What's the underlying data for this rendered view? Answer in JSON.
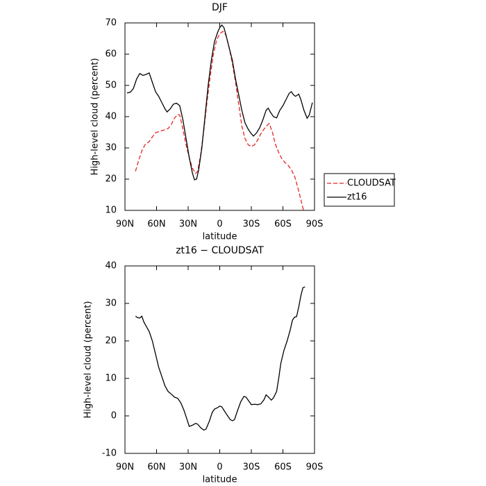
{
  "chart_data": [
    {
      "type": "line",
      "title": "DJF",
      "xlabel": "latitude",
      "ylabel": "High-level cloud (percent)",
      "xlim": [
        90,
        -90
      ],
      "ylim": [
        10,
        70
      ],
      "xticks": [
        {
          "value": 90,
          "label": "90N"
        },
        {
          "value": 60,
          "label": "60N"
        },
        {
          "value": 30,
          "label": "30N"
        },
        0,
        {
          "value": -30,
          "label": "30S"
        },
        {
          "value": -60,
          "label": "60S"
        },
        {
          "value": -90,
          "label": "90S"
        }
      ],
      "yticks": [
        10,
        20,
        30,
        40,
        50,
        60,
        70
      ],
      "legend": "right",
      "series": [
        {
          "name": "CLOUDSAT",
          "color": "#e8231f",
          "linestyle": "dashed",
          "x": [
            80,
            77,
            74,
            71,
            67,
            64,
            61,
            58,
            55,
            52,
            49,
            46,
            43,
            40,
            38,
            35,
            32,
            29,
            26,
            23,
            21,
            18,
            15,
            12,
            9,
            6,
            3,
            0,
            -3,
            -6,
            -9,
            -12,
            -15,
            -18,
            -21,
            -24,
            -27,
            -30,
            -33,
            -36,
            -39,
            -42,
            -45,
            -47,
            -50,
            -53,
            -56,
            -59,
            -62,
            -65,
            -68,
            -71,
            -74,
            -77,
            -79.5
          ],
          "values": [
            22.5,
            26,
            29,
            31,
            32,
            33.5,
            34.8,
            35.2,
            35.5,
            35.8,
            36.2,
            37.5,
            39.5,
            40.7,
            40.5,
            36,
            31,
            27,
            23.5,
            21.8,
            22.5,
            28,
            36,
            45,
            53,
            60,
            64.5,
            66.5,
            67.3,
            66,
            62,
            57,
            51,
            44,
            37,
            33,
            31,
            30.4,
            31,
            32.5,
            34.5,
            36,
            37.2,
            37.8,
            35,
            31,
            28.5,
            26.5,
            25.3,
            24.4,
            23,
            21,
            17.5,
            13.5,
            10
          ]
        },
        {
          "name": "zt16",
          "color": "#000000",
          "linestyle": "solid",
          "x": [
            88,
            85,
            82,
            79,
            76,
            73,
            70,
            67,
            64,
            61,
            58,
            55,
            52,
            50,
            47,
            44,
            41,
            38,
            35,
            32,
            29,
            26,
            24,
            22,
            20,
            17,
            14,
            11,
            8,
            5,
            2,
            0,
            -2,
            -4,
            -6,
            -9,
            -12,
            -15,
            -18,
            -21,
            -24,
            -27,
            -30,
            -32,
            -35,
            -38,
            -41,
            -44,
            -46,
            -48,
            -51,
            -54,
            -57,
            -60,
            -63,
            -66,
            -68,
            -70,
            -72,
            -75,
            -77,
            -80,
            -83,
            -85,
            -88
          ],
          "values": [
            47.6,
            47.8,
            49,
            52,
            53.8,
            53.2,
            53.5,
            54,
            51,
            48,
            46.5,
            44.5,
            42.5,
            41.5,
            42.5,
            44,
            44.3,
            43.5,
            39,
            33,
            27,
            22,
            19.8,
            20,
            23,
            30,
            40,
            50,
            58,
            64,
            67,
            68.5,
            69.3,
            68.5,
            66,
            62,
            58,
            52,
            47,
            42,
            38,
            36,
            34.5,
            33.8,
            34.8,
            36.5,
            39,
            42,
            42.7,
            41.5,
            40,
            39.6,
            42,
            43.5,
            45.5,
            47.5,
            48,
            47,
            46.5,
            47.2,
            45.5,
            42,
            39.5,
            40.5,
            44.5
          ]
        }
      ]
    },
    {
      "type": "line",
      "title": "zt16 − CLOUDSAT",
      "xlabel": "latitude",
      "ylabel": "High-level cloud (percent)",
      "xlim": [
        90,
        -90
      ],
      "ylim": [
        -10,
        40
      ],
      "xticks": [
        {
          "value": 90,
          "label": "90N"
        },
        {
          "value": 60,
          "label": "60N"
        },
        {
          "value": 30,
          "label": "30N"
        },
        0,
        {
          "value": -30,
          "label": "30S"
        },
        {
          "value": -60,
          "label": "60S"
        },
        {
          "value": -90,
          "label": "90S"
        }
      ],
      "yticks": [
        -10,
        0,
        10,
        20,
        30,
        40
      ],
      "series": [
        {
          "color": "#000000",
          "linestyle": "solid",
          "x": [
            80,
            78,
            76,
            74,
            72,
            70,
            67,
            64,
            61,
            58,
            55,
            52,
            49,
            46,
            43,
            40,
            37,
            34,
            31,
            29,
            26,
            23,
            21,
            18,
            15,
            13,
            10,
            7,
            5,
            2,
            0,
            -2,
            -4,
            -7,
            -10,
            -12,
            -14,
            -17,
            -20,
            -23,
            -25,
            -28,
            -30,
            -33,
            -36,
            -39,
            -42,
            -44,
            -46,
            -49,
            -51,
            -54,
            -56,
            -58,
            -61,
            -64,
            -67,
            -69,
            -71,
            -73,
            -75,
            -77,
            -79,
            -81
          ],
          "values": [
            26.6,
            26.2,
            26.1,
            26.6,
            25,
            24,
            22.5,
            20,
            16.5,
            13,
            10.5,
            8,
            6.5,
            5.8,
            5,
            4.7,
            3.5,
            1.5,
            -1,
            -2.8,
            -2.5,
            -2,
            -2.2,
            -3.2,
            -3.8,
            -3.5,
            -1.5,
            1,
            1.8,
            2.2,
            2.6,
            2.4,
            1.5,
            0.2,
            -1,
            -1.3,
            -1,
            1.5,
            3.8,
            5.2,
            5,
            3.8,
            3,
            3.1,
            3,
            3.2,
            4.3,
            5.6,
            5.1,
            4.2,
            4.8,
            6.5,
            10,
            14,
            17.5,
            20,
            23,
            25.5,
            26.3,
            26.5,
            29,
            32,
            34.2,
            34.4
          ]
        }
      ]
    }
  ]
}
